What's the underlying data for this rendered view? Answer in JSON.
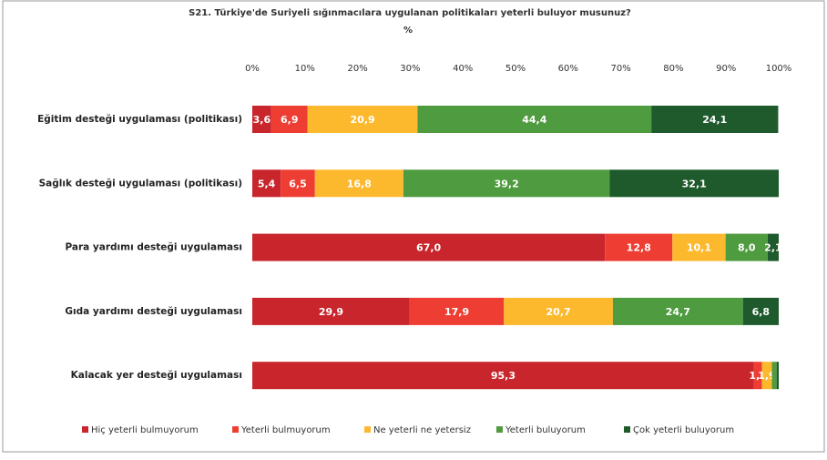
{
  "chart_data": {
    "type": "stacked-bar-horizontal",
    "title": "S21. Türkiye'de Suriyeli sığınmacılara uygulanan politikaları yeterli buluyor musunuz?",
    "subtitle": "%",
    "categories": [
      "Eğitim desteği uygulaması (politikası)",
      "Sağlık desteği uygulaması (politikası)",
      "Para yardımı desteği uygulaması",
      "Gıda yardımı desteği uygulaması",
      "Kalacak yer desteği uygulaması"
    ],
    "series": [
      {
        "name": "Hiç yeterli bulmuyorum",
        "color": "#c8252c",
        "values": [
          3.6,
          5.4,
          67.0,
          29.9,
          95.3
        ],
        "value_labels": [
          "3,6",
          "5,4",
          "67,0",
          "29,9",
          "95,3"
        ]
      },
      {
        "name": "Yeterli bulmuyorum",
        "color": "#ee3e33",
        "values": [
          6.9,
          6.5,
          12.8,
          17.9,
          1.5
        ],
        "value_labels": [
          "6,9",
          "6,5",
          "12,8",
          "17,9",
          "1,5"
        ]
      },
      {
        "name": "Ne yeterli ne yetersiz",
        "color": "#fdb92e",
        "values": [
          20.9,
          16.8,
          10.1,
          20.7,
          1.9
        ],
        "value_labels": [
          "20,9",
          "16,8",
          "10,1",
          "20,7",
          "1,9"
        ]
      },
      {
        "name": "Yeterli buluyorum",
        "color": "#4f9b3f",
        "values": [
          44.4,
          39.2,
          8.0,
          24.7,
          0.9
        ],
        "value_labels": [
          "44,4",
          "39,2",
          "8,0",
          "24,7",
          null
        ]
      },
      {
        "name": "Çok yeterli buluyorum",
        "color": "#1f5a2c",
        "values": [
          24.1,
          32.1,
          2.1,
          6.8,
          0.4
        ],
        "value_labels": [
          "24,1",
          "32,1",
          "2,1",
          "6,8",
          null
        ]
      }
    ],
    "xlim": [
      0,
      100
    ],
    "xticks": [
      {
        "value": 0,
        "label": "0%"
      },
      {
        "value": 10,
        "label": "10%"
      },
      {
        "value": 20,
        "label": "20%"
      },
      {
        "value": 30,
        "label": "30%"
      },
      {
        "value": 40,
        "label": "40%"
      },
      {
        "value": 50,
        "label": "50%"
      },
      {
        "value": 60,
        "label": "60%"
      },
      {
        "value": 70,
        "label": "70%"
      },
      {
        "value": 80,
        "label": "80%"
      },
      {
        "value": 90,
        "label": "90%"
      },
      {
        "value": 100,
        "label": "100%"
      }
    ],
    "legend": "bottom"
  }
}
